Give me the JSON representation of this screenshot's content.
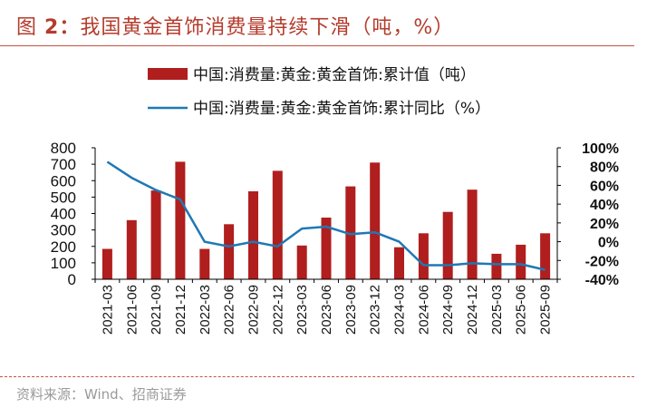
{
  "header": {
    "title_prefix": "图",
    "title_number": "2：",
    "title_text": "我国黄金首饰消费量持续下滑（吨，%）"
  },
  "footer": {
    "source": "资料来源：Wind、招商证券"
  },
  "colors": {
    "bar": "#b01e1e",
    "line": "#1f78b4",
    "accent": "#b53b2c"
  },
  "chart_data": {
    "type": "bar",
    "title": "我国黄金首饰消费量持续下滑（吨，%）",
    "categories": [
      "2021-03",
      "2021-06",
      "2021-09",
      "2021-12",
      "2022-03",
      "2022-06",
      "2022-09",
      "2022-12",
      "2023-03",
      "2023-06",
      "2023-09",
      "2023-12",
      "2024-03",
      "2024-06",
      "2024-09",
      "2024-12",
      "2025-03",
      "2025-06",
      "2025-09"
    ],
    "series": [
      {
        "name": "中国:消费量:黄金:黄金首饰:累计值（吨）",
        "type": "bar",
        "axis": "left",
        "values": [
          185,
          360,
          540,
          715,
          185,
          335,
          535,
          660,
          205,
          375,
          565,
          710,
          195,
          280,
          410,
          545,
          155,
          210,
          280
        ]
      },
      {
        "name": "中国:消费量:黄金:黄金首饰:累计同比（%）",
        "type": "line",
        "axis": "right",
        "values": [
          85,
          68,
          55,
          45,
          0,
          -5,
          0,
          -5,
          14,
          16,
          8,
          10,
          0,
          -25,
          -25,
          -23,
          -24,
          -24,
          -30
        ]
      }
    ],
    "y_left": {
      "min": 0,
      "max": 800,
      "step": 100,
      "ticks": [
        "0",
        "100",
        "200",
        "300",
        "400",
        "500",
        "600",
        "700",
        "800"
      ]
    },
    "y_right": {
      "min": -40,
      "max": 100,
      "step": 20,
      "ticks": [
        "-40%",
        "-20%",
        "0%",
        "20%",
        "40%",
        "60%",
        "80%",
        "100%"
      ]
    },
    "legend_position": "top-center"
  }
}
